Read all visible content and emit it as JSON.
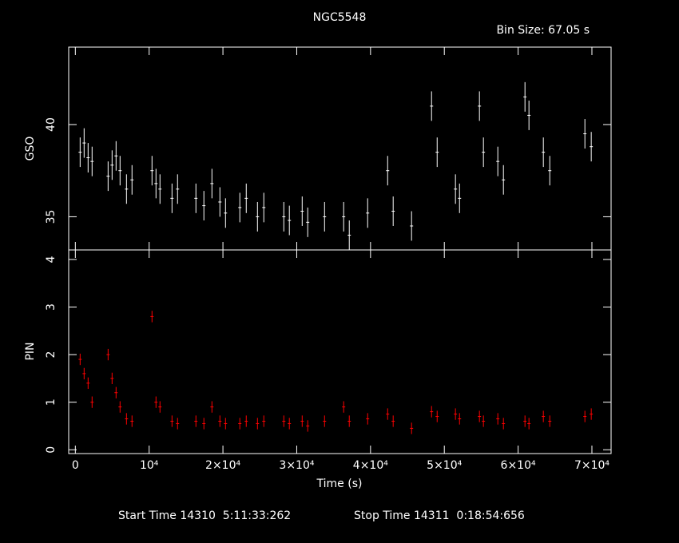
{
  "chart_data": [
    {
      "type": "errorbar",
      "title": "NGC5548",
      "annotation": "Bin Size: 67.05 s",
      "ylabel": "GSO",
      "color": "#ffffff",
      "xlim": [
        -900,
        72600
      ],
      "ylim": [
        33.2,
        44.2
      ],
      "yticks": [
        35,
        40
      ],
      "error": 0.8,
      "x": [
        650,
        1190,
        1730,
        2270,
        4440,
        4980,
        5520,
        6060,
        6930,
        7680,
        10390,
        10930,
        11470,
        13100,
        13850,
        16340,
        17420,
        18510,
        19590,
        20350,
        22290,
        23160,
        24680,
        25540,
        28250,
        29000,
        30740,
        31490,
        33770,
        36360,
        37120,
        39610,
        42320,
        43070,
        45560,
        48270,
        49030,
        51510,
        52060,
        54760,
        55300,
        57250,
        58010,
        60930,
        61470,
        63420,
        64290,
        69050,
        69910
      ],
      "values": [
        38.5,
        39.0,
        38.2,
        38.0,
        37.2,
        37.8,
        38.3,
        37.5,
        36.5,
        37.0,
        37.5,
        36.8,
        36.5,
        36.0,
        36.5,
        36.0,
        35.6,
        36.8,
        35.8,
        35.2,
        35.5,
        36.0,
        35.0,
        35.5,
        35.0,
        34.8,
        35.3,
        34.7,
        35.0,
        35.0,
        34.0,
        35.2,
        37.5,
        35.3,
        34.5,
        41.0,
        38.5,
        36.5,
        36.0,
        41.0,
        38.5,
        38.0,
        37.0,
        41.5,
        40.5,
        38.5,
        37.5,
        39.5,
        38.8
      ]
    },
    {
      "type": "errorbar",
      "ylabel": "PIN",
      "xlabel": "Time (s)",
      "color": "#ff0000",
      "xlim": [
        -900,
        72600
      ],
      "ylim": [
        -0.08,
        4.2
      ],
      "yticks": [
        0,
        1,
        2,
        3,
        4
      ],
      "error": 0.12,
      "xticks": [
        0,
        {
          "value": 10000,
          "label": "10⁴"
        },
        {
          "value": 20000,
          "label": "2×10⁴"
        },
        {
          "value": 30000,
          "label": "3×10⁴"
        },
        {
          "value": 40000,
          "label": "4×10⁴"
        },
        {
          "value": 50000,
          "label": "5×10⁴"
        },
        {
          "value": 60000,
          "label": "6×10⁴"
        },
        {
          "value": 70000,
          "label": "7×10⁴"
        }
      ],
      "x": [
        650,
        1190,
        1730,
        2270,
        4440,
        4980,
        5520,
        6060,
        6930,
        7680,
        10390,
        10930,
        11470,
        13100,
        13850,
        16340,
        17420,
        18510,
        19590,
        20350,
        22290,
        23160,
        24680,
        25540,
        28250,
        29000,
        30740,
        31490,
        33770,
        36360,
        37120,
        39610,
        42320,
        43070,
        45560,
        48270,
        49030,
        51510,
        52060,
        54760,
        55300,
        57250,
        58010,
        60930,
        61470,
        63420,
        64290,
        69050,
        69910
      ],
      "values": [
        1.9,
        1.6,
        1.4,
        1.0,
        2.0,
        1.5,
        1.2,
        0.9,
        0.65,
        0.6,
        2.8,
        1.0,
        0.9,
        0.6,
        0.55,
        0.6,
        0.55,
        0.9,
        0.6,
        0.55,
        0.55,
        0.6,
        0.55,
        0.6,
        0.6,
        0.55,
        0.6,
        0.5,
        0.6,
        0.9,
        0.6,
        0.65,
        0.75,
        0.6,
        0.45,
        0.8,
        0.7,
        0.75,
        0.65,
        0.7,
        0.6,
        0.65,
        0.55,
        0.6,
        0.55,
        0.7,
        0.6,
        0.7,
        0.75
      ],
      "annotations": [
        "Start Time 14310  5:11:33:262",
        "Stop Time 14311  0:18:54:656"
      ]
    }
  ]
}
